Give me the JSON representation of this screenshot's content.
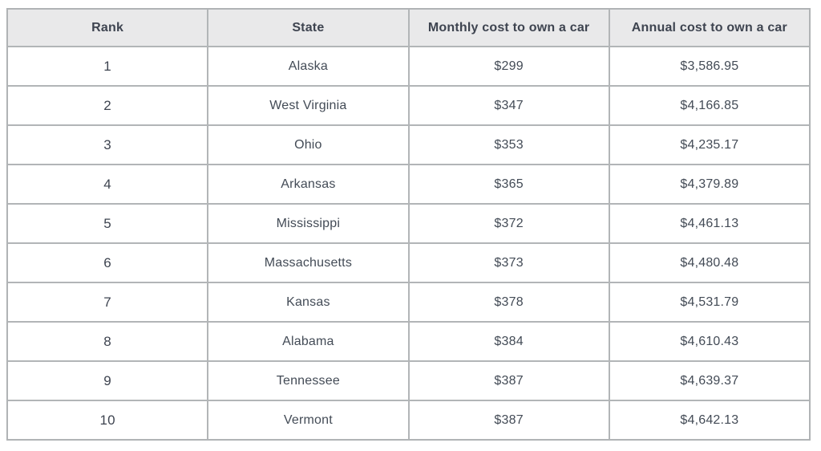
{
  "page": {
    "background": "#ffffff"
  },
  "style": {
    "header_bg": "#e9e9ea",
    "border_color": "#b2b5b7",
    "header_text_color": "#3e4450",
    "cell_text_color": "#434b56",
    "row_bg": "#ffffff"
  },
  "chart_data": {
    "type": "table",
    "title": "",
    "columns": [
      "Rank",
      "State",
      "Monthly cost to own a car",
      "Annual cost to own a car"
    ],
    "rows": [
      [
        "1",
        "Alaska",
        "$299",
        "$3,586.95"
      ],
      [
        "2",
        "West Virginia",
        "$347",
        "$4,166.85"
      ],
      [
        "3",
        "Ohio",
        "$353",
        "$4,235.17"
      ],
      [
        "4",
        "Arkansas",
        "$365",
        "$4,379.89"
      ],
      [
        "5",
        "Mississippi",
        "$372",
        "$4,461.13"
      ],
      [
        "6",
        "Massachusetts",
        "$373",
        "$4,480.48"
      ],
      [
        "7",
        "Kansas",
        "$378",
        "$4,531.79"
      ],
      [
        "8",
        "Alabama",
        "$384",
        "$4,610.43"
      ],
      [
        "9",
        "Tennessee",
        "$387",
        "$4,639.37"
      ],
      [
        "10",
        "Vermont",
        "$387",
        "$4,642.13"
      ]
    ],
    "series": [
      {
        "name": "Monthly cost to own a car (USD)",
        "values": [
          299,
          347,
          353,
          365,
          372,
          373,
          378,
          384,
          387,
          387
        ]
      },
      {
        "name": "Annual cost to own a car (USD)",
        "values": [
          3586.95,
          4166.85,
          4235.17,
          4379.89,
          4461.13,
          4480.48,
          4531.79,
          4610.43,
          4639.37,
          4642.13
        ]
      }
    ],
    "categories": [
      "Alaska",
      "West Virginia",
      "Ohio",
      "Arkansas",
      "Mississippi",
      "Massachusetts",
      "Kansas",
      "Alabama",
      "Tennessee",
      "Vermont"
    ]
  }
}
